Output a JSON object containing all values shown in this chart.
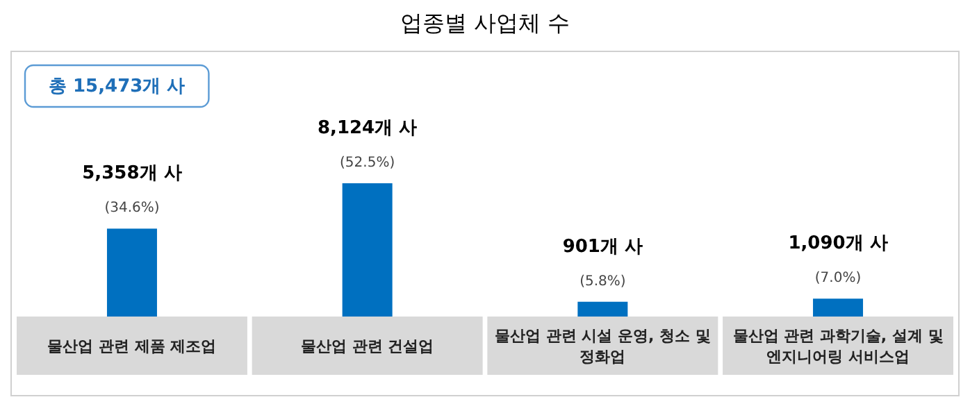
{
  "chart_data": {
    "type": "bar",
    "title": "업종별 사업체 수",
    "annotations": [
      "총 15,473개 사"
    ],
    "categories": [
      "물산업 관련 제품 제조업",
      "물산업 관련 건설업",
      "물산업 관련 시설 운영, 청소 및 정화업",
      "물산업 관련 과학기술, 설계 및 엔지니어링 서비스업"
    ],
    "values": [
      5358,
      8124,
      901,
      1090
    ],
    "value_labels": [
      "5,358개 사\n(34.6%)",
      "8,124개 사\n(52.5%)",
      "901개 사\n(5.8%)",
      "1,090개 사\n(7.0%)"
    ],
    "color": "#0070c0"
  }
}
